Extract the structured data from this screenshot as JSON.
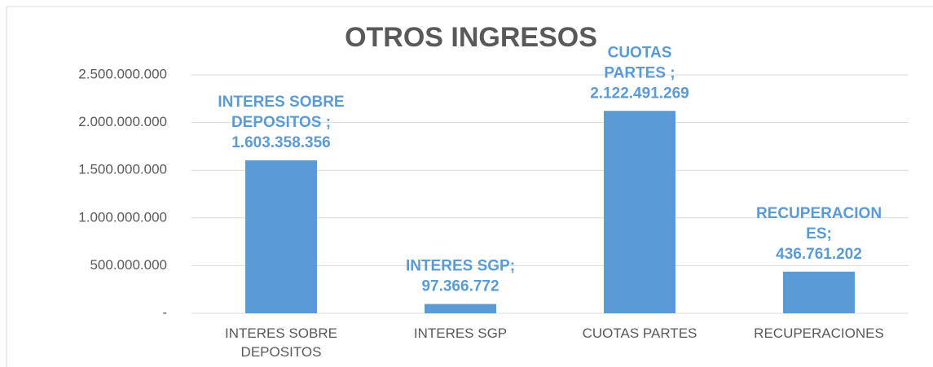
{
  "chart_data": {
    "type": "bar",
    "title": "OTROS INGRESOS",
    "categories": [
      "INTERES SOBRE DEPOSITOS",
      "INTERES SGP",
      "CUOTAS PARTES",
      "RECUPERACIONES"
    ],
    "values": [
      1603358356,
      97366772,
      2122491269,
      436761202
    ],
    "value_labels": [
      "1.603.358.356",
      "97.366.772",
      "2.122.491.269",
      "436.761.202"
    ],
    "label_prefixes": [
      [
        "INTERES SOBRE",
        "DEPOSITOS ;"
      ],
      [
        "INTERES SGP;"
      ],
      [
        "CUOTAS",
        "PARTES ;"
      ],
      [
        "RECUPERACION",
        "ES;"
      ]
    ],
    "color": "#5b9bd5",
    "ylim": [
      0,
      2500000000
    ],
    "yticks": [
      {
        "value": 0,
        "label": "-"
      },
      {
        "value": 500000000,
        "label": "500.000.000"
      },
      {
        "value": 1000000000,
        "label": "1.000.000.000"
      },
      {
        "value": 1500000000,
        "label": "1.500.000.000"
      },
      {
        "value": 2000000000,
        "label": "2.000.000.000"
      },
      {
        "value": 2500000000,
        "label": "2.500.000.000"
      }
    ],
    "grid": true
  }
}
